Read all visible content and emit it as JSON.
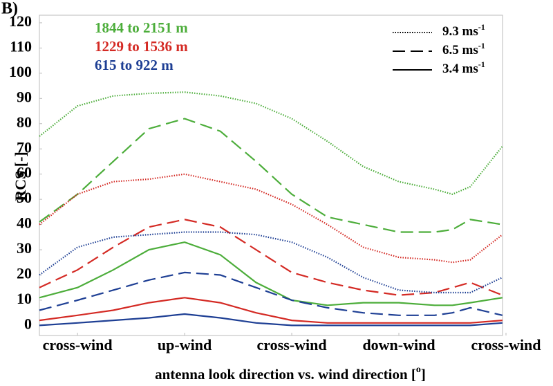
{
  "chart_data": {
    "type": "line",
    "panel_label": "B)",
    "ylabel": "RCS [-]",
    "xlabel": {
      "text": "antenna look direction vs. wind direction [",
      "sup": "o",
      "end": "]"
    },
    "x": [
      -32,
      0,
      30,
      60,
      90,
      120,
      150,
      180,
      210,
      240,
      270,
      300,
      315,
      330,
      357
    ],
    "xlim": [
      -32,
      360
    ],
    "xticks": [
      {
        "value": 0,
        "label": "cross-wind"
      },
      {
        "value": 90,
        "label": "up-wind"
      },
      {
        "value": 180,
        "label": "cross-wind"
      },
      {
        "value": 270,
        "label": "down-wind"
      },
      {
        "value": 360,
        "label": "cross-wind"
      }
    ],
    "ylim": [
      -4,
      123
    ],
    "yticks": [
      0,
      10,
      20,
      30,
      40,
      50,
      60,
      70,
      80,
      90,
      100,
      110,
      120
    ],
    "grid": false,
    "line_styles": [
      {
        "label": "9.3 ms",
        "sup": "-1",
        "dash": "dotted"
      },
      {
        "label": "6.5 ms",
        "sup": "-1",
        "dash": "dashed"
      },
      {
        "label": "3.4 ms",
        "sup": "-1",
        "dash": "solid"
      }
    ],
    "series": [
      {
        "name": "1844 to 2151 m",
        "color": "#4cad3a",
        "lines": [
          {
            "values": [
              75,
              87,
              91,
              92,
              92.5,
              91,
              88,
              82,
              73,
              63,
              57,
              54,
              52,
              55,
              71
            ]
          },
          {
            "values": [
              41,
              52,
              65,
              78,
              82,
              77,
              65,
              52,
              43,
              40,
              37,
              37,
              38,
              42,
              40
            ]
          },
          {
            "values": [
              11,
              15,
              22,
              30,
              33,
              28,
              17,
              10,
              8,
              9,
              9,
              8,
              8,
              9,
              11
            ]
          }
        ]
      },
      {
        "name": "1229 to 1536 m",
        "color": "#d42a24",
        "lines": [
          {
            "values": [
              40,
              52,
              57,
              58,
              60,
              57,
              54,
              48,
              40,
              31,
              27,
              26,
              25,
              26,
              36
            ]
          },
          {
            "values": [
              15,
              22,
              31,
              39,
              42,
              39,
              30,
              21,
              17,
              14,
              12,
              13,
              15,
              17,
              12
            ]
          },
          {
            "values": [
              2,
              4,
              6,
              9,
              11,
              9,
              5,
              2,
              1,
              1,
              1,
              1,
              1,
              1,
              2
            ]
          }
        ]
      },
      {
        "name": "615 to 922 m",
        "color": "#1e3f94",
        "lines": [
          {
            "values": [
              20,
              31,
              35,
              36,
              37,
              37,
              36,
              33,
              27,
              19,
              14,
              13,
              13,
              13,
              19
            ]
          },
          {
            "values": [
              6,
              10,
              14,
              18,
              21,
              20,
              15,
              10,
              7,
              5,
              4,
              4,
              5,
              7,
              4
            ]
          },
          {
            "values": [
              0,
              1,
              2,
              3,
              4.5,
              3,
              1,
              0,
              0,
              0,
              0,
              0,
              0,
              0,
              1
            ]
          }
        ]
      }
    ]
  }
}
